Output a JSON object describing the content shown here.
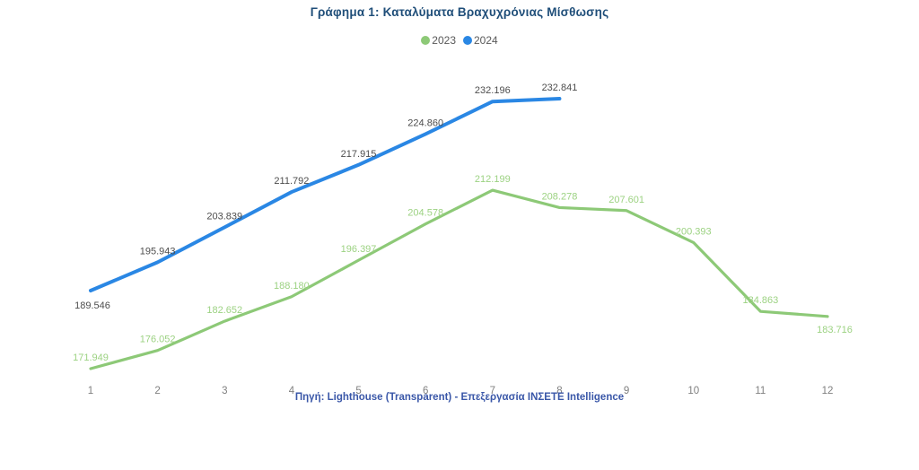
{
  "title": "Γράφημα 1: Καταλύματα Βραχυχρόνιας Μίσθωσης",
  "source": "Πηγή: Lighthouse (Transparent) - Επεξεργασία ΙΝΣΕΤΕ Intelligence",
  "colors": {
    "title_text": "#1F4E79",
    "source_text": "#3A57A8",
    "series_2023": "#8DC977",
    "series_2023_label": "#9CD282",
    "series_2024": "#2A87E4",
    "series_2024_label": "#4D4D4D",
    "axis_text": "#7F7F7F",
    "legend_text": "#595959",
    "background": "#FFFFFF"
  },
  "legend": {
    "items": [
      {
        "label": "2023",
        "color": "#8DC977"
      },
      {
        "label": "2024",
        "color": "#2A87E4"
      }
    ]
  },
  "chart_data": {
    "type": "line",
    "title": "Γράφημα 1: Καταλύματα Βραχυχρόνιας Μίσθωσης",
    "xlabel": "",
    "ylabel": "",
    "x": [
      1,
      2,
      3,
      4,
      5,
      6,
      7,
      8,
      9,
      10,
      11,
      12
    ],
    "x_tick_labels": [
      "1",
      "2",
      "3",
      "4",
      "5",
      "6",
      "7",
      "8",
      "9",
      "10",
      "11",
      "12"
    ],
    "ylim": [
      165000,
      240000
    ],
    "grid": false,
    "legend_position": "top",
    "series": [
      {
        "name": "2023",
        "color": "#8DC977",
        "label_color": "#9CD282",
        "x": [
          1,
          2,
          3,
          4,
          5,
          6,
          7,
          8,
          9,
          10,
          11,
          12
        ],
        "values": [
          171949,
          176052,
          182652,
          188180,
          196397,
          204578,
          212199,
          208278,
          207601,
          200393,
          184863,
          183716
        ],
        "point_labels": [
          "171.949",
          "176.052",
          "182.652",
          "188.180",
          "196.397",
          "204.578",
          "212.199",
          "208.278",
          "207.601",
          "200.393",
          "184.863",
          "183.716"
        ]
      },
      {
        "name": "2024",
        "color": "#2A87E4",
        "label_color": "#4D4D4D",
        "x": [
          1,
          2,
          3,
          4,
          5,
          6,
          7,
          8
        ],
        "values": [
          189546,
          195943,
          203839,
          211792,
          217915,
          224860,
          232196,
          232841
        ],
        "point_labels": [
          "189.546",
          "195.943",
          "203.839",
          "211.792",
          "217.915",
          "224.860",
          "232.196",
          "232.841"
        ]
      }
    ]
  }
}
